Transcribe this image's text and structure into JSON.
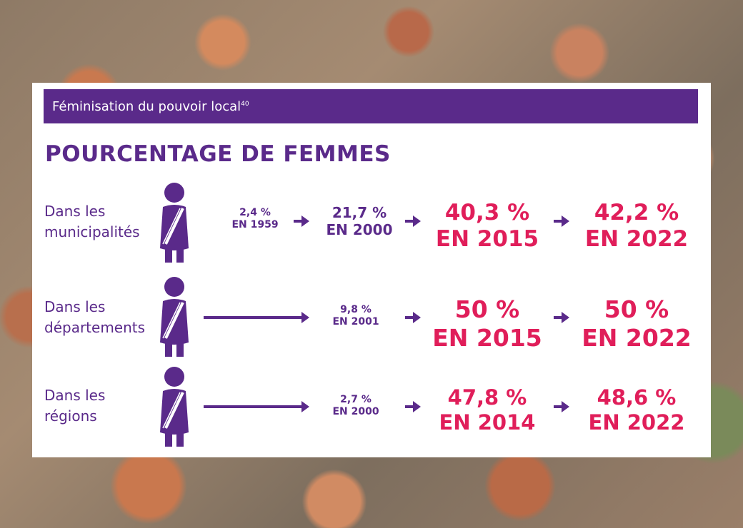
{
  "banner": {
    "title": "Féminisation du pouvoir local",
    "sup": "40"
  },
  "heading": "POURCENTAGE DE FEMMES",
  "rows": [
    {
      "label_line1": "Dans les",
      "label_line2": "municipalités",
      "steps": [
        {
          "value": "2,4 %",
          "year": "EN 1959"
        },
        {
          "value": "21,7 %",
          "year": "EN 2000"
        },
        {
          "value": "40,3 %",
          "year": "EN 2015"
        },
        {
          "value": "42,2 %",
          "year": "EN 2022"
        }
      ]
    },
    {
      "label_line1": "Dans les",
      "label_line2": "départements",
      "steps": [
        {
          "value": "9,8 %",
          "year": "EN 2001"
        },
        {
          "value": "50 %",
          "year": "EN 2015"
        },
        {
          "value": "50 %",
          "year": "EN 2022"
        }
      ]
    },
    {
      "label_line1": "Dans les",
      "label_line2": "régions",
      "steps": [
        {
          "value": "2,7 %",
          "year": "EN 2000"
        },
        {
          "value": "47,8 %",
          "year": "EN 2014"
        },
        {
          "value": "48,6 %",
          "year": "EN 2022"
        }
      ]
    }
  ],
  "colors": {
    "purple": "#5a2a8a",
    "pink": "#e01e5a"
  },
  "icons": {
    "person": "woman-with-sash-icon",
    "arrow": "arrow-right-icon"
  }
}
